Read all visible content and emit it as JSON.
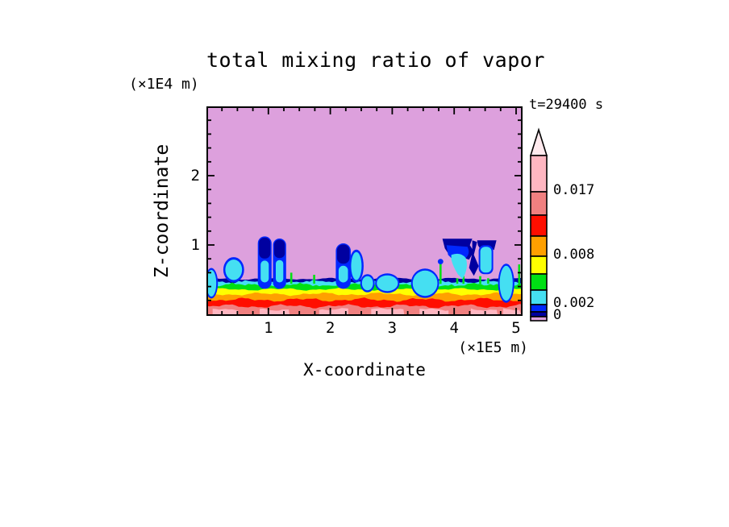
{
  "chart_data": {
    "type": "filled_contour",
    "title": "total mixing ratio of vapor",
    "timestamp": "t=29400 s",
    "xlabel": "X-coordinate",
    "x_unit": "(×1E5 m)",
    "zlabel": "Z-coordinate",
    "z_unit": "(×1E4 m)",
    "x_ticks": [
      1,
      2,
      3,
      4,
      5
    ],
    "z_ticks": [
      1,
      2
    ],
    "x_minor_step": 0.25,
    "z_minor_step": 0.2,
    "x_range_1e5_m": [
      0,
      5.1
    ],
    "z_range_1e4_m": [
      0,
      3.02
    ],
    "contour_levels_labeled": [
      0,
      0.002,
      0.008,
      0.017
    ],
    "colors": {
      "plum": "#DDA0DD",
      "navy": "#0000A0",
      "blue": "#0028FF",
      "cyan": "#45DFF2",
      "green": "#00E014",
      "yellow": "#FFFF00",
      "orange": "#FFA000",
      "red": "#FF0E00",
      "salmon": "#F08080",
      "pink": "#FFB6C1",
      "tip": "#FFEAEE",
      "frame": "#000000"
    },
    "colorbar": {
      "tip_color_key": "tip",
      "bands": [
        {
          "color_key": "pink",
          "h": 45
        },
        {
          "color_key": "salmon",
          "h": 29
        },
        {
          "color_key": "red",
          "h": 26
        },
        {
          "color_key": "orange",
          "h": 25
        },
        {
          "color_key": "yellow",
          "h": 22
        },
        {
          "color_key": "green",
          "h": 20
        },
        {
          "color_key": "cyan",
          "h": 18
        },
        {
          "color_key": "blue",
          "h": 9
        },
        {
          "color_key": "navy",
          "h": 6
        },
        {
          "color_key": "plum",
          "h": 5
        }
      ],
      "labels": [
        {
          "text": "0.017",
          "after_band": 0
        },
        {
          "text": "0.008",
          "after_band": 3
        },
        {
          "text": "0.002",
          "after_band": 6
        },
        {
          "text": "0",
          "after_band": 8
        }
      ]
    },
    "field": {
      "background_color_key": "plum",
      "boundary_layer_top_z": 0.51,
      "layers": [
        {
          "color": "navy",
          "z_top": 0.512,
          "amp": 1.5,
          "spiky": false
        },
        {
          "color": "cyan",
          "z_top": 0.465,
          "amp": 2.0,
          "spiky": true
        },
        {
          "color": "green",
          "z_top": 0.419,
          "amp": 2.5,
          "spiky": true
        },
        {
          "color": "yellow",
          "z_top": 0.36,
          "amp": 2.0,
          "spiky": false
        },
        {
          "color": "orange",
          "z_top": 0.291,
          "amp": 2.5,
          "spiky": false
        },
        {
          "color": "red",
          "z_top": 0.209,
          "amp": 3.0,
          "spiky": false
        },
        {
          "color": "salmon",
          "z_top": 0.116,
          "amp": 3.0,
          "spiky": false
        }
      ],
      "pink_patches_x": [
        [
          0.1,
          0.52
        ],
        [
          0.86,
          1.35
        ],
        [
          1.82,
          2.29
        ],
        [
          2.66,
          3.2
        ],
        [
          3.44,
          3.91
        ],
        [
          4.27,
          4.71
        ],
        [
          4.79,
          5.1
        ]
      ],
      "plumes": [
        {
          "style": "bump",
          "x": 0.08,
          "top": 0.64,
          "w": 0.16
        },
        {
          "style": "blob",
          "x": 0.44,
          "top": 0.8,
          "w": 0.27
        },
        {
          "style": "column",
          "x": 0.94,
          "top": 1.1,
          "w": 0.17,
          "navy_frac": 0.42
        },
        {
          "style": "column",
          "x": 1.18,
          "top": 1.07,
          "w": 0.16,
          "navy_frac": 0.38
        },
        {
          "style": "spike",
          "x": 1.37,
          "top": 0.6,
          "cap": false
        },
        {
          "style": "spike",
          "x": 1.74,
          "top": 0.57,
          "cap": false
        },
        {
          "style": "column",
          "x": 2.21,
          "top": 1.0,
          "w": 0.19,
          "navy_frac": 0.45
        },
        {
          "style": "blob",
          "x": 2.42,
          "top": 0.91,
          "w": 0.17
        },
        {
          "style": "bump",
          "x": 2.6,
          "top": 0.55,
          "w": 0.18
        },
        {
          "style": "hook",
          "x": 2.92,
          "top": 0.56,
          "w": 0.34
        },
        {
          "style": "hook",
          "x": 3.53,
          "top": 0.63,
          "w": 0.4
        },
        {
          "style": "spike",
          "x": 3.78,
          "top": 0.76,
          "cap": true
        },
        {
          "style": "spike",
          "x": 4.05,
          "top": 0.52,
          "cap": false
        },
        {
          "style": "spike",
          "x": 4.15,
          "top": 0.55,
          "cap": false
        },
        {
          "style": "anvil",
          "x": 4.24,
          "top": 1.09,
          "w": 0.85
        },
        {
          "style": "spike",
          "x": 4.42,
          "top": 0.55,
          "cap": false
        },
        {
          "style": "spike",
          "x": 4.55,
          "top": 0.52,
          "cap": false
        },
        {
          "style": "bump",
          "x": 4.84,
          "top": 0.7,
          "w": 0.21
        },
        {
          "style": "spike",
          "x": 5.05,
          "top": 0.72,
          "cap": false
        }
      ]
    }
  }
}
